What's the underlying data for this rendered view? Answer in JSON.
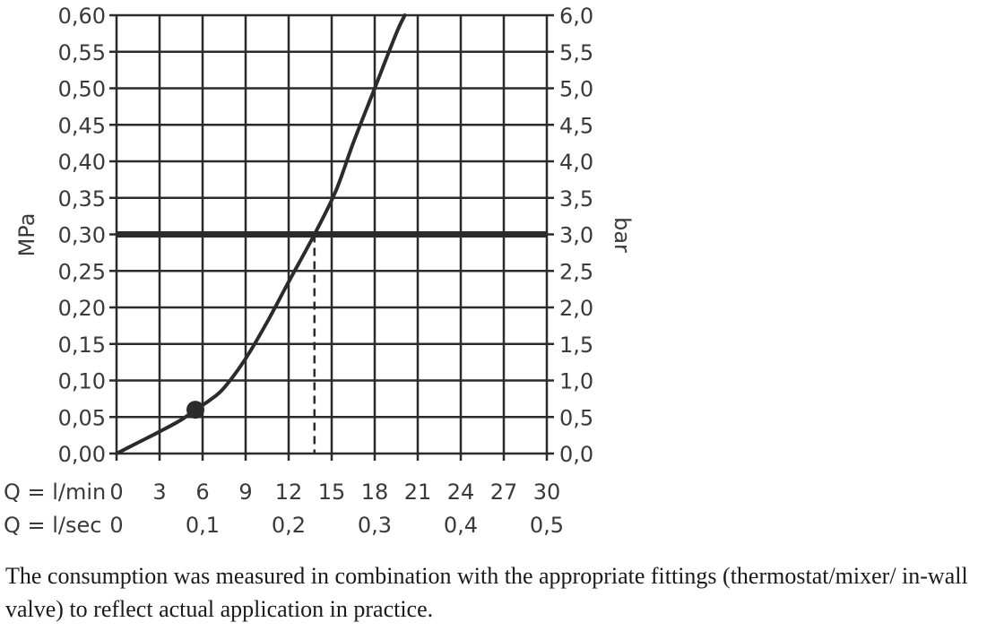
{
  "chart_data": {
    "type": "line",
    "y_left_label": "MPa",
    "y_right_label": "bar",
    "x_label_lmin": "Q = l/min",
    "x_label_lsec": "Q = l/sec",
    "xlim": [
      0,
      30
    ],
    "ylim": [
      0,
      0.6
    ],
    "grid": true,
    "y_left_ticks": [
      "0,00",
      "0,05",
      "0,10",
      "0,15",
      "0,20",
      "0,25",
      "0,30",
      "0,35",
      "0,40",
      "0,45",
      "0,50",
      "0,55",
      "0,60"
    ],
    "y_right_ticks": [
      "0,0",
      "0,5",
      "1,0",
      "1,5",
      "2,0",
      "2,5",
      "3,0",
      "3,5",
      "4,0",
      "4,5",
      "5,0",
      "5,5",
      "6,0"
    ],
    "x_ticks_lmin": [
      "0",
      "3",
      "6",
      "9",
      "12",
      "15",
      "18",
      "21",
      "24",
      "27",
      "30"
    ],
    "x_ticks_lsec": [
      {
        "value": 0,
        "label": "0"
      },
      {
        "value": 6,
        "label": "0,1"
      },
      {
        "value": 12,
        "label": "0,2"
      },
      {
        "value": 18,
        "label": "0,3"
      },
      {
        "value": 24,
        "label": "0,4"
      },
      {
        "value": 30,
        "label": "0,5"
      }
    ],
    "series": [
      {
        "x": [
          0,
          1.5,
          3,
          4.5,
          5.5,
          6.5,
          7.5,
          9,
          10.5,
          12,
          13.8,
          15.3,
          16.5,
          18,
          19.5,
          20.1
        ],
        "y": [
          0,
          0.015,
          0.03,
          0.046,
          0.06,
          0.073,
          0.09,
          0.13,
          0.18,
          0.235,
          0.3,
          0.36,
          0.425,
          0.5,
          0.575,
          0.6
        ]
      }
    ],
    "marker_point": {
      "x": 5.5,
      "y": 0.06
    },
    "reference_line_y": 0.3,
    "dashed_drop_x": 13.8
  },
  "caption": "The consumption was measured in combination with the appropriate fittings (thermostat/mixer/ in-wall valve) to reflect actual application in practice."
}
